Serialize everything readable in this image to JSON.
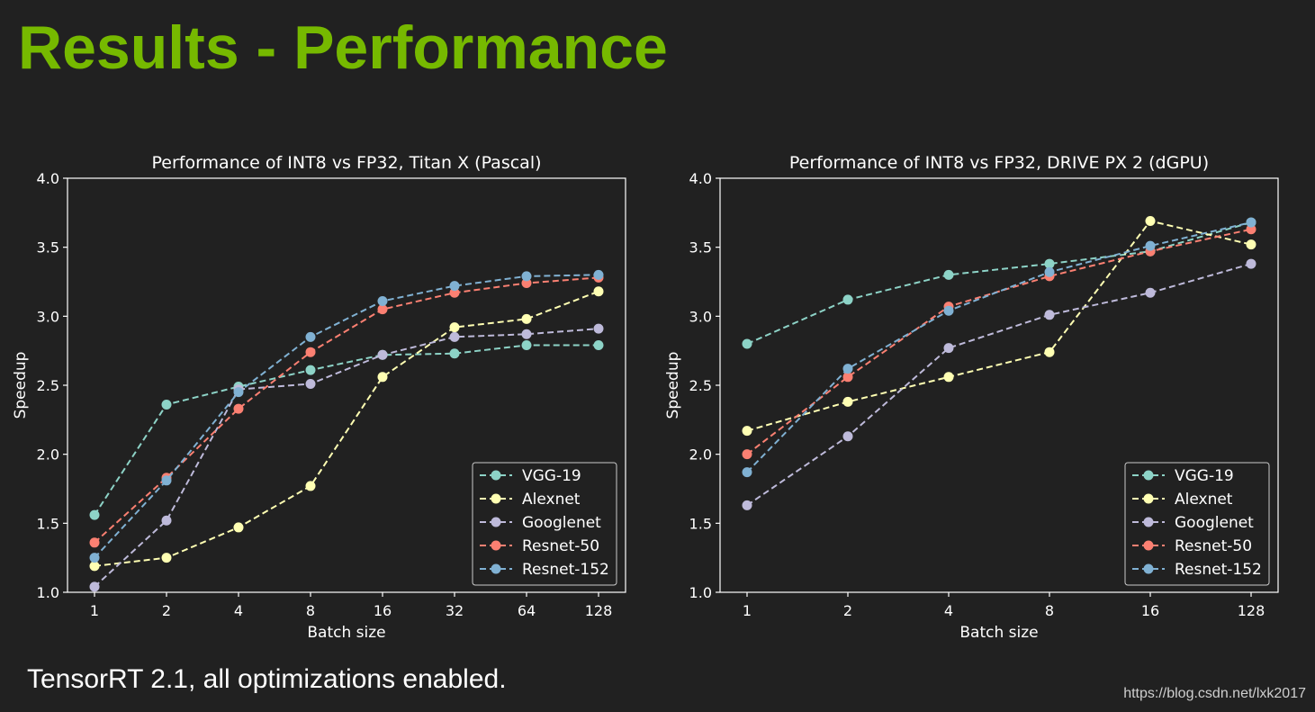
{
  "page": {
    "title": "Results - Performance",
    "footnote": "TensorRT 2.1, all optimizations enabled.",
    "watermark": "https://blog.csdn.net/lxk2017"
  },
  "chart_data": [
    {
      "type": "line",
      "title": "Performance of INT8 vs FP32, Titan X (Pascal)",
      "xlabel": "Batch size",
      "ylabel": "Speedup",
      "categories": [
        "1",
        "2",
        "4",
        "8",
        "16",
        "32",
        "64",
        "128"
      ],
      "ylim": [
        1.0,
        4.0
      ],
      "yticks": [
        "1.0",
        "1.5",
        "2.0",
        "2.5",
        "3.0",
        "3.5",
        "4.0"
      ],
      "legend_position": "bottom-right",
      "series": [
        {
          "name": "VGG-19",
          "color": "#8dd3c7",
          "values": [
            1.56,
            2.36,
            2.49,
            2.61,
            2.72,
            2.73,
            2.79,
            2.79
          ]
        },
        {
          "name": "Alexnet",
          "color": "#ffffb3",
          "values": [
            1.19,
            1.25,
            1.47,
            1.77,
            2.56,
            2.92,
            2.98,
            3.18
          ]
        },
        {
          "name": "Googlenet",
          "color": "#bebada",
          "values": [
            1.04,
            1.52,
            2.47,
            2.51,
            2.72,
            2.85,
            2.87,
            2.91
          ]
        },
        {
          "name": "Resnet-50",
          "color": "#fb8072",
          "values": [
            1.36,
            1.83,
            2.33,
            2.74,
            3.05,
            3.17,
            3.24,
            3.28
          ]
        },
        {
          "name": "Resnet-152",
          "color": "#80b1d3",
          "values": [
            1.25,
            1.81,
            2.45,
            2.85,
            3.11,
            3.22,
            3.29,
            3.3
          ]
        }
      ]
    },
    {
      "type": "line",
      "title": "Performance of INT8 vs FP32, DRIVE PX 2 (dGPU)",
      "xlabel": "Batch size",
      "ylabel": "Speedup",
      "categories": [
        "1",
        "2",
        "4",
        "8",
        "16",
        "128"
      ],
      "ylim": [
        1.0,
        4.0
      ],
      "yticks": [
        "1.0",
        "1.5",
        "2.0",
        "2.5",
        "3.0",
        "3.5",
        "4.0"
      ],
      "legend_position": "bottom-right",
      "series": [
        {
          "name": "VGG-19",
          "color": "#8dd3c7",
          "values": [
            2.8,
            3.12,
            3.3,
            3.38,
            3.47,
            3.68
          ]
        },
        {
          "name": "Alexnet",
          "color": "#ffffb3",
          "values": [
            2.17,
            2.38,
            2.56,
            2.74,
            3.69,
            3.52
          ]
        },
        {
          "name": "Googlenet",
          "color": "#bebada",
          "values": [
            1.63,
            2.13,
            2.77,
            3.01,
            3.17,
            3.38
          ]
        },
        {
          "name": "Resnet-50",
          "color": "#fb8072",
          "values": [
            2.0,
            2.56,
            3.07,
            3.29,
            3.47,
            3.63
          ]
        },
        {
          "name": "Resnet-152",
          "color": "#80b1d3",
          "values": [
            1.87,
            2.62,
            3.04,
            3.32,
            3.51,
            3.68
          ]
        }
      ]
    }
  ]
}
